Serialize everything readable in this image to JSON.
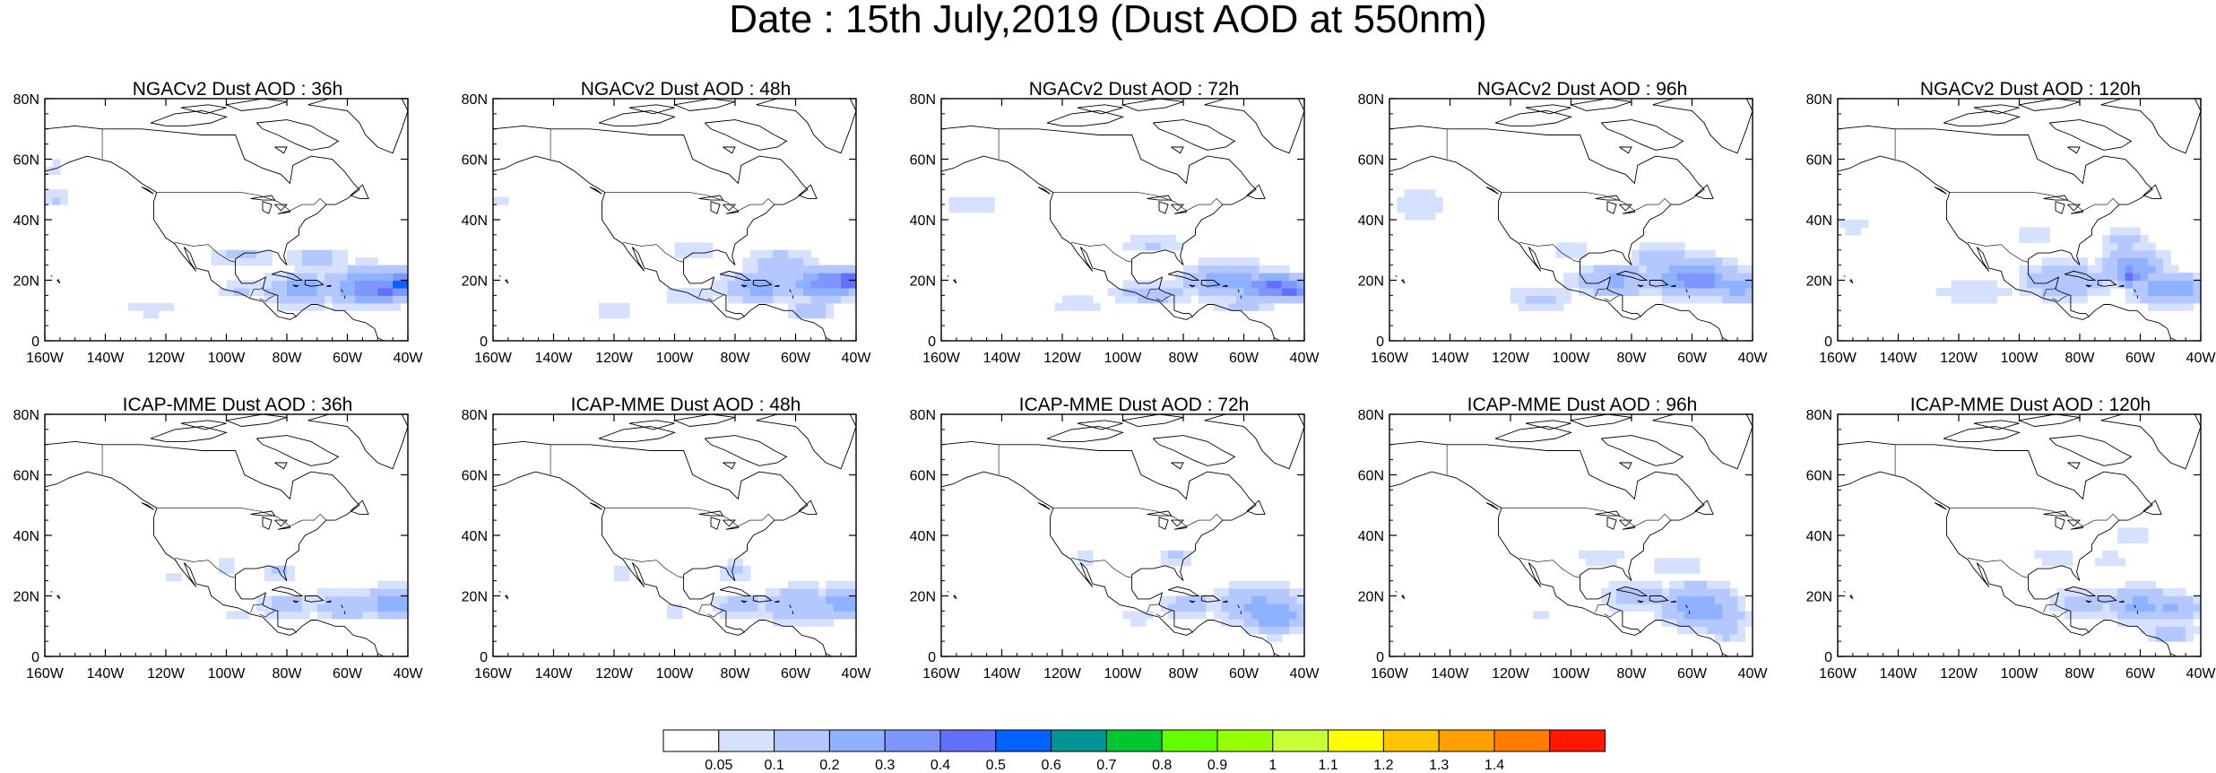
{
  "figure": {
    "title": "Date : 15th July,2019 (Dust AOD at 550nm)"
  },
  "map": {
    "lon_range": [
      -160,
      -40
    ],
    "lat_range": [
      0,
      80
    ],
    "x_ticks": [
      "160W",
      "140W",
      "120W",
      "100W",
      "80W",
      "60W",
      "40W"
    ],
    "y_ticks": [
      "0",
      "20N",
      "40N",
      "60N",
      "80N"
    ]
  },
  "panels": [
    {
      "title": "NGACv2 Dust AOD : 36h",
      "model": "NGACv2",
      "lead": "36h",
      "plumes": [
        [
          -53,
          18,
          14,
          6,
          0.35
        ],
        [
          -42,
          19,
          6,
          4,
          0.55
        ],
        [
          -48,
          17,
          10,
          4,
          0.45
        ],
        [
          -75,
          17,
          12,
          5,
          0.25
        ],
        [
          -95,
          17,
          8,
          3,
          0.12
        ],
        [
          -125,
          11,
          8,
          3,
          0.1
        ],
        [
          -95,
          28,
          12,
          3,
          0.12
        ],
        [
          -156,
          47,
          4,
          3,
          0.12
        ],
        [
          -157,
          57,
          3,
          2,
          0.12
        ],
        [
          -70,
          27,
          10,
          4,
          0.15
        ]
      ]
    },
    {
      "title": "NGACv2 Dust AOD : 48h",
      "model": "NGACv2",
      "lead": "48h",
      "plumes": [
        [
          -50,
          19,
          12,
          5,
          0.38
        ],
        [
          -43,
          20,
          5,
          3,
          0.55
        ],
        [
          -72,
          18,
          12,
          5,
          0.25
        ],
        [
          -95,
          15,
          10,
          3,
          0.12
        ],
        [
          -120,
          10,
          8,
          3,
          0.1
        ],
        [
          -93,
          30,
          8,
          3,
          0.12
        ],
        [
          -157,
          47,
          3,
          2,
          0.1
        ],
        [
          -65,
          25,
          12,
          5,
          0.18
        ],
        [
          -55,
          10,
          8,
          3,
          0.15
        ]
      ]
    },
    {
      "title": "NGACv2 Dust AOD : 72h",
      "model": "NGACv2",
      "lead": "72h",
      "plumes": [
        [
          -50,
          18,
          12,
          4,
          0.45
        ],
        [
          -45,
          17,
          6,
          3,
          0.52
        ],
        [
          -65,
          20,
          14,
          6,
          0.28
        ],
        [
          -90,
          16,
          14,
          4,
          0.15
        ],
        [
          -115,
          12,
          10,
          3,
          0.1
        ],
        [
          -150,
          45,
          10,
          4,
          0.1
        ],
        [
          -90,
          32,
          10,
          3,
          0.12
        ],
        [
          -60,
          12,
          10,
          3,
          0.15
        ]
      ]
    },
    {
      "title": "NGACv2 Dust AOD : 96h",
      "model": "NGACv2",
      "lead": "96h",
      "plumes": [
        [
          -60,
          21,
          14,
          6,
          0.35
        ],
        [
          -55,
          20,
          6,
          3,
          0.42
        ],
        [
          -85,
          20,
          14,
          5,
          0.22
        ],
        [
          -110,
          14,
          12,
          4,
          0.12
        ],
        [
          -150,
          45,
          8,
          6,
          0.1
        ],
        [
          -70,
          28,
          10,
          4,
          0.18
        ],
        [
          -45,
          18,
          10,
          5,
          0.25
        ],
        [
          -100,
          30,
          8,
          3,
          0.1
        ]
      ]
    },
    {
      "title": "NGACv2 Dust AOD : 120h",
      "model": "NGACv2",
      "lead": "120h",
      "plumes": [
        [
          -62,
          24,
          10,
          6,
          0.3
        ],
        [
          -63,
          22,
          3,
          4,
          0.45
        ],
        [
          -50,
          17,
          12,
          5,
          0.3
        ],
        [
          -85,
          20,
          14,
          6,
          0.2
        ],
        [
          -115,
          16,
          14,
          4,
          0.1
        ],
        [
          -155,
          38,
          5,
          3,
          0.1
        ],
        [
          -65,
          33,
          8,
          4,
          0.15
        ],
        [
          -95,
          35,
          6,
          3,
          0.1
        ]
      ]
    },
    {
      "title": "ICAP-MME Dust AOD : 36h",
      "model": "ICAP-MME",
      "lead": "36h",
      "plumes": [
        [
          -45,
          18,
          8,
          5,
          0.3
        ],
        [
          -60,
          17,
          12,
          5,
          0.18
        ],
        [
          -80,
          17,
          10,
          4,
          0.15
        ],
        [
          -82,
          28,
          6,
          3,
          0.12
        ],
        [
          -97,
          13,
          6,
          2,
          0.08
        ],
        [
          -118,
          27,
          3,
          2,
          0.1
        ],
        [
          -100,
          30,
          6,
          2,
          0.08
        ]
      ]
    },
    {
      "title": "ICAP-MME Dust AOD : 48h",
      "model": "ICAP-MME",
      "lead": "48h",
      "plumes": [
        [
          -44,
          18,
          8,
          5,
          0.3
        ],
        [
          -58,
          17,
          14,
          6,
          0.2
        ],
        [
          -78,
          17,
          10,
          4,
          0.15
        ],
        [
          -80,
          28,
          6,
          4,
          0.12
        ],
        [
          -117,
          28,
          3,
          3,
          0.1
        ],
        [
          -100,
          15,
          6,
          2,
          0.08
        ]
      ]
    },
    {
      "title": "ICAP-MME Dust AOD : 72h",
      "model": "ICAP-MME",
      "lead": "72h",
      "plumes": [
        [
          -50,
          14,
          10,
          6,
          0.3
        ],
        [
          -55,
          17,
          14,
          7,
          0.22
        ],
        [
          -78,
          17,
          10,
          4,
          0.15
        ],
        [
          -82,
          33,
          6,
          3,
          0.12
        ],
        [
          -113,
          33,
          3,
          3,
          0.1
        ],
        [
          -95,
          13,
          6,
          3,
          0.08
        ]
      ]
    },
    {
      "title": "ICAP-MME Dust AOD : 96h",
      "model": "ICAP-MME",
      "lead": "96h",
      "plumes": [
        [
          -58,
          17,
          12,
          7,
          0.28
        ],
        [
          -52,
          13,
          10,
          5,
          0.22
        ],
        [
          -78,
          20,
          12,
          5,
          0.15
        ],
        [
          -90,
          33,
          8,
          3,
          0.1
        ],
        [
          -110,
          13,
          6,
          2,
          0.08
        ],
        [
          -65,
          30,
          8,
          3,
          0.12
        ],
        [
          -48,
          8,
          6,
          3,
          0.15
        ]
      ]
    },
    {
      "title": "ICAP-MME Dust AOD : 120h",
      "model": "ICAP-MME",
      "lead": "120h",
      "plumes": [
        [
          -60,
          17,
          10,
          6,
          0.25
        ],
        [
          -50,
          16,
          10,
          5,
          0.22
        ],
        [
          -78,
          18,
          12,
          5,
          0.15
        ],
        [
          -88,
          33,
          8,
          3,
          0.1
        ],
        [
          -50,
          8,
          8,
          3,
          0.18
        ],
        [
          -63,
          40,
          6,
          4,
          0.1
        ],
        [
          -70,
          32,
          6,
          3,
          0.1
        ]
      ]
    }
  ],
  "colorbar": {
    "colors": [
      "#ffffff",
      "#d6e1ff",
      "#b5c7ff",
      "#8eb2ff",
      "#7f96ff",
      "#6370ff",
      "#0063ff",
      "#009696",
      "#00c633",
      "#63ff00",
      "#96ff00",
      "#c6ff33",
      "#ffff00",
      "#ffc600",
      "#ffa000",
      "#ff7c00",
      "#ff1900"
    ],
    "levels": [
      "0.05",
      "0.1",
      "0.2",
      "0.3",
      "0.4",
      "0.5",
      "0.6",
      "0.7",
      "0.8",
      "0.9",
      "1",
      "1.1",
      "1.2",
      "1.3",
      "1.4"
    ]
  }
}
